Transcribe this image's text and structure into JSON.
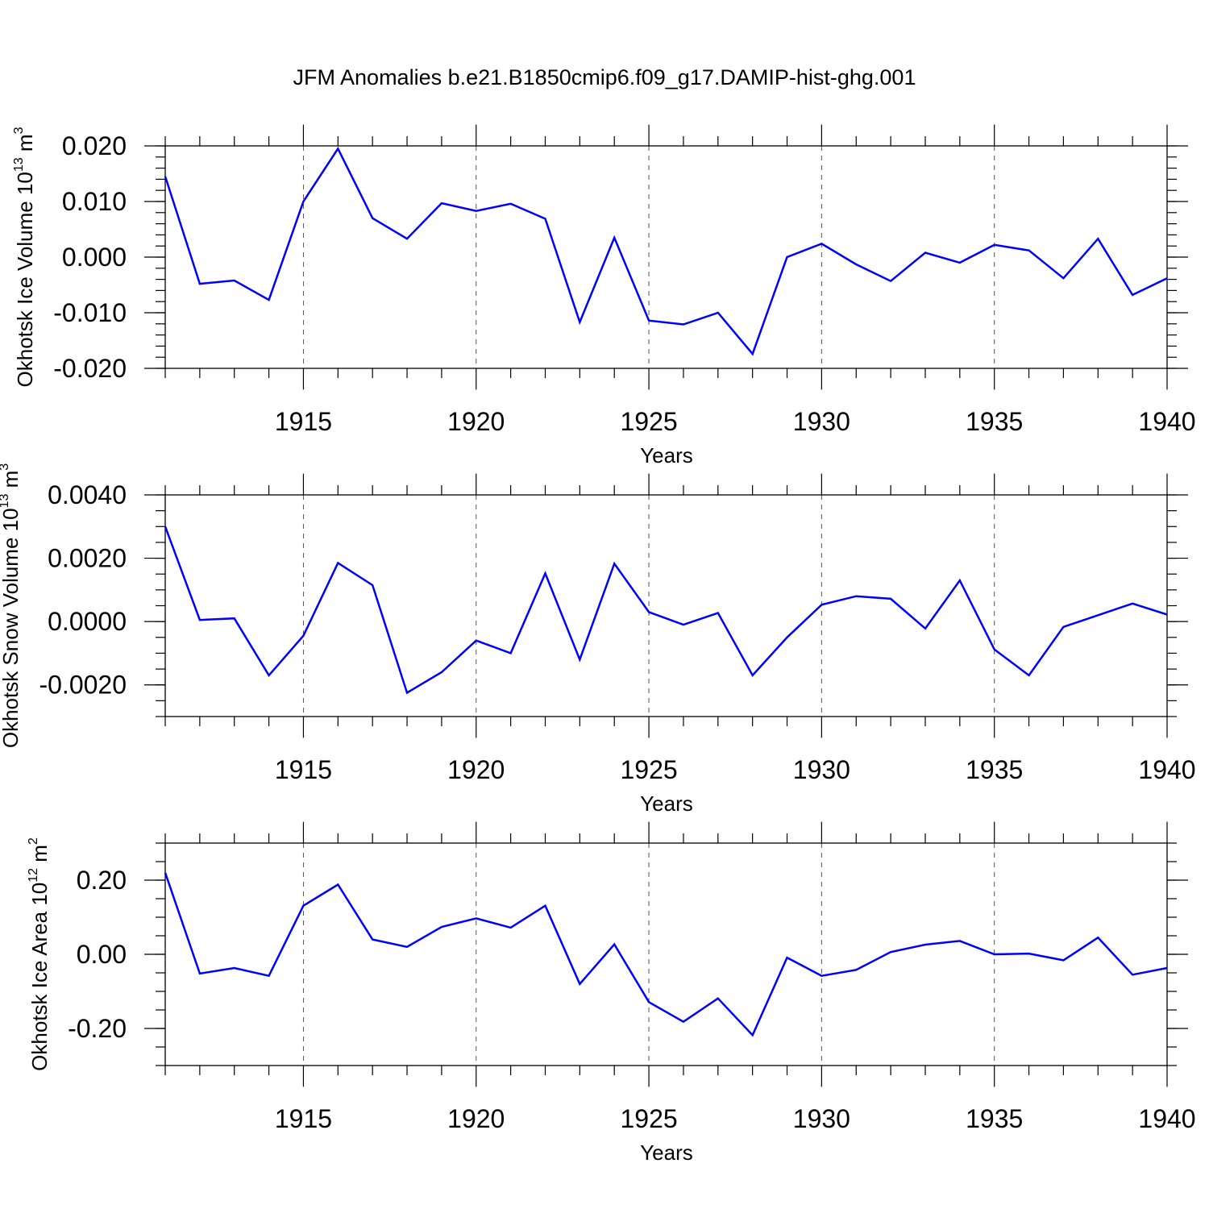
{
  "chart_data": [
    {
      "type": "line",
      "title": "JFM Anomalies b.e21.B1850cmip6.f09_g17.DAMIP-hist-ghg.001",
      "ylabel": {
        "main": "Okhotsk Ice Volume 10",
        "exp": "13",
        "unit": " m",
        "unit_exp": "3"
      },
      "xlabel": "Years",
      "xlim": [
        1911,
        1940
      ],
      "ylim": [
        -0.02,
        0.02
      ],
      "yticks": [
        -0.02,
        -0.01,
        0.0,
        0.01,
        0.02
      ],
      "ytick_labels": [
        "-0.020",
        "-0.010",
        "0.000",
        "0.010",
        "0.020"
      ],
      "xticks": [
        1915,
        1920,
        1925,
        1930,
        1935,
        1940
      ],
      "xtick_labels": [
        "1915",
        "1920",
        "1925",
        "1930",
        "1935",
        "1940"
      ],
      "grid": "vertical dashed at major x ticks",
      "color": "#0000ff",
      "x": [
        1911,
        1912,
        1913,
        1914,
        1915,
        1916,
        1917,
        1918,
        1919,
        1920,
        1921,
        1922,
        1923,
        1924,
        1925,
        1926,
        1927,
        1928,
        1929,
        1930,
        1931,
        1932,
        1933,
        1934,
        1935,
        1936,
        1937,
        1938,
        1939,
        1940
      ],
      "values": [
        0.0145,
        -0.0048,
        -0.0042,
        -0.0077,
        0.01,
        0.0195,
        0.007,
        0.0033,
        0.0097,
        0.0083,
        0.0096,
        0.0069,
        -0.0117,
        0.0035,
        -0.0114,
        -0.0121,
        -0.01,
        -0.0174,
        0.0,
        0.0024,
        -0.0013,
        -0.0043,
        0.0008,
        -0.001,
        0.0022,
        0.0012,
        -0.0038,
        0.0033,
        -0.0068,
        -0.0038
      ]
    },
    {
      "type": "line",
      "ylabel": {
        "main": "Okhotsk Snow Volume 10",
        "exp": "13",
        "unit": " m",
        "unit_exp": "3"
      },
      "xlabel": "Years",
      "xlim": [
        1911,
        1940
      ],
      "ylim": [
        -0.003,
        0.004
      ],
      "yticks": [
        -0.002,
        0.0,
        0.002,
        0.004
      ],
      "ytick_labels": [
        "-0.0020",
        "0.0000",
        "0.0020",
        "0.0040"
      ],
      "xticks": [
        1915,
        1920,
        1925,
        1930,
        1935,
        1940
      ],
      "xtick_labels": [
        "1915",
        "1920",
        "1925",
        "1930",
        "1935",
        "1940"
      ],
      "grid": "vertical dashed at major x ticks",
      "color": "#0000ff",
      "x": [
        1911,
        1912,
        1913,
        1914,
        1915,
        1916,
        1917,
        1918,
        1919,
        1920,
        1921,
        1922,
        1923,
        1924,
        1925,
        1926,
        1927,
        1928,
        1929,
        1930,
        1931,
        1932,
        1933,
        1934,
        1935,
        1936,
        1937,
        1938,
        1939,
        1940
      ],
      "values": [
        0.003,
        5e-05,
        0.0001,
        -0.0017,
        -0.00045,
        0.00185,
        0.00115,
        -0.00225,
        -0.0016,
        -0.0006,
        -0.001,
        0.00152,
        -0.0012,
        0.00183,
        0.0003,
        -0.0001,
        0.00027,
        -0.0017,
        -0.0005,
        0.00053,
        0.0008,
        0.00072,
        -0.00022,
        0.0013,
        -0.00088,
        -0.0017,
        -0.00017,
        0.0002,
        0.00057,
        0.00022
      ]
    },
    {
      "type": "line",
      "ylabel": {
        "main": "Okhotsk Ice Area 10",
        "exp": "12",
        "unit": " m",
        "unit_exp": "2"
      },
      "xlabel": "Years",
      "xlim": [
        1911,
        1940
      ],
      "ylim": [
        -0.3,
        0.3
      ],
      "yticks": [
        -0.2,
        0.0,
        0.2
      ],
      "ytick_labels": [
        "-0.20",
        "0.00",
        "0.20"
      ],
      "xticks": [
        1915,
        1920,
        1925,
        1930,
        1935,
        1940
      ],
      "xtick_labels": [
        "1915",
        "1920",
        "1925",
        "1930",
        "1935",
        "1940"
      ],
      "grid": "vertical dashed at major x ticks",
      "color": "#0000ff",
      "x": [
        1911,
        1912,
        1913,
        1914,
        1915,
        1916,
        1917,
        1918,
        1919,
        1920,
        1921,
        1922,
        1923,
        1924,
        1925,
        1926,
        1927,
        1928,
        1929,
        1930,
        1931,
        1932,
        1933,
        1934,
        1935,
        1936,
        1937,
        1938,
        1939,
        1940
      ],
      "values": [
        0.22,
        -0.052,
        -0.037,
        -0.058,
        0.131,
        0.188,
        0.04,
        0.02,
        0.074,
        0.097,
        0.072,
        0.131,
        -0.08,
        0.027,
        -0.129,
        -0.182,
        -0.119,
        -0.218,
        -0.009,
        -0.058,
        -0.042,
        0.006,
        0.026,
        0.036,
        0.0,
        0.002,
        -0.016,
        0.045,
        -0.055,
        -0.037
      ]
    }
  ]
}
